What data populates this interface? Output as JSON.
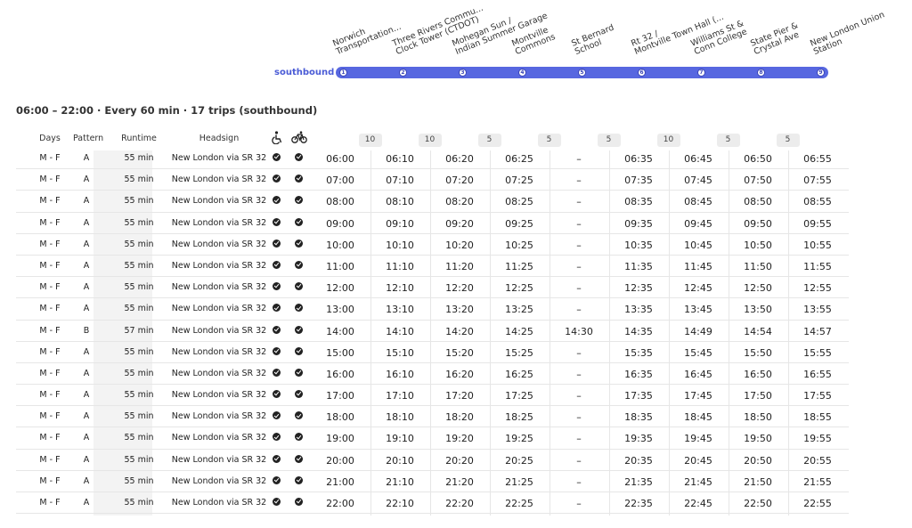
{
  "route": {
    "direction_label": "southbound",
    "stops": [
      {
        "num": "1",
        "name1": "Norwich",
        "name2": "Transportation..."
      },
      {
        "num": "2",
        "name1": "Three Rivers Commu...",
        "name2": "Clock Tower (CTDOT)"
      },
      {
        "num": "3",
        "name1": "Mohegan Sun /",
        "name2": "Indian Summer Garage"
      },
      {
        "num": "4",
        "name1": "Montville",
        "name2": "Commons"
      },
      {
        "num": "5",
        "name1": "St Bernard",
        "name2": "School"
      },
      {
        "num": "6",
        "name1": "Rt 32 /",
        "name2": "Montville Town Hall (..."
      },
      {
        "num": "7",
        "name1": "Williams St &",
        "name2": "Conn College"
      },
      {
        "num": "8",
        "name1": "State Pier &",
        "name2": "Crystal Ave"
      },
      {
        "num": "9",
        "name1": "New London Union",
        "name2": "Station"
      }
    ]
  },
  "summary": "06:00 – 22:00 · Every 60 min · 17 trips (southbound)",
  "table": {
    "headers": {
      "days": "Days",
      "pattern": "Pattern",
      "runtime": "Runtime",
      "headsign": "Headsign",
      "wheelchair_icon": "wheelchair-icon",
      "bike_icon": "bicycle-icon"
    },
    "segment_minutes": [
      "10",
      "10",
      "5",
      "5",
      "5",
      "10",
      "5",
      "5"
    ],
    "rows": [
      {
        "days": "M - F",
        "pattern": "A",
        "runtime": "55 min",
        "headsign": "New London via SR 32",
        "times": [
          "06:00",
          "06:10",
          "06:20",
          "06:25",
          "–",
          "06:35",
          "06:45",
          "06:50",
          "06:55"
        ]
      },
      {
        "days": "M - F",
        "pattern": "A",
        "runtime": "55 min",
        "headsign": "New London via SR 32",
        "times": [
          "07:00",
          "07:10",
          "07:20",
          "07:25",
          "–",
          "07:35",
          "07:45",
          "07:50",
          "07:55"
        ]
      },
      {
        "days": "M - F",
        "pattern": "A",
        "runtime": "55 min",
        "headsign": "New London via SR 32",
        "times": [
          "08:00",
          "08:10",
          "08:20",
          "08:25",
          "–",
          "08:35",
          "08:45",
          "08:50",
          "08:55"
        ]
      },
      {
        "days": "M - F",
        "pattern": "A",
        "runtime": "55 min",
        "headsign": "New London via SR 32",
        "times": [
          "09:00",
          "09:10",
          "09:20",
          "09:25",
          "–",
          "09:35",
          "09:45",
          "09:50",
          "09:55"
        ]
      },
      {
        "days": "M - F",
        "pattern": "A",
        "runtime": "55 min",
        "headsign": "New London via SR 32",
        "times": [
          "10:00",
          "10:10",
          "10:20",
          "10:25",
          "–",
          "10:35",
          "10:45",
          "10:50",
          "10:55"
        ]
      },
      {
        "days": "M - F",
        "pattern": "A",
        "runtime": "55 min",
        "headsign": "New London via SR 32",
        "times": [
          "11:00",
          "11:10",
          "11:20",
          "11:25",
          "–",
          "11:35",
          "11:45",
          "11:50",
          "11:55"
        ]
      },
      {
        "days": "M - F",
        "pattern": "A",
        "runtime": "55 min",
        "headsign": "New London via SR 32",
        "times": [
          "12:00",
          "12:10",
          "12:20",
          "12:25",
          "–",
          "12:35",
          "12:45",
          "12:50",
          "12:55"
        ]
      },
      {
        "days": "M - F",
        "pattern": "A",
        "runtime": "55 min",
        "headsign": "New London via SR 32",
        "times": [
          "13:00",
          "13:10",
          "13:20",
          "13:25",
          "–",
          "13:35",
          "13:45",
          "13:50",
          "13:55"
        ]
      },
      {
        "days": "M - F",
        "pattern": "B",
        "runtime": "57 min",
        "headsign": "New London via SR 32",
        "times": [
          "14:00",
          "14:10",
          "14:20",
          "14:25",
          "14:30",
          "14:35",
          "14:49",
          "14:54",
          "14:57"
        ]
      },
      {
        "days": "M - F",
        "pattern": "A",
        "runtime": "55 min",
        "headsign": "New London via SR 32",
        "times": [
          "15:00",
          "15:10",
          "15:20",
          "15:25",
          "–",
          "15:35",
          "15:45",
          "15:50",
          "15:55"
        ]
      },
      {
        "days": "M - F",
        "pattern": "A",
        "runtime": "55 min",
        "headsign": "New London via SR 32",
        "times": [
          "16:00",
          "16:10",
          "16:20",
          "16:25",
          "–",
          "16:35",
          "16:45",
          "16:50",
          "16:55"
        ]
      },
      {
        "days": "M - F",
        "pattern": "A",
        "runtime": "55 min",
        "headsign": "New London via SR 32",
        "times": [
          "17:00",
          "17:10",
          "17:20",
          "17:25",
          "–",
          "17:35",
          "17:45",
          "17:50",
          "17:55"
        ]
      },
      {
        "days": "M - F",
        "pattern": "A",
        "runtime": "55 min",
        "headsign": "New London via SR 32",
        "times": [
          "18:00",
          "18:10",
          "18:20",
          "18:25",
          "–",
          "18:35",
          "18:45",
          "18:50",
          "18:55"
        ]
      },
      {
        "days": "M - F",
        "pattern": "A",
        "runtime": "55 min",
        "headsign": "New London via SR 32",
        "times": [
          "19:00",
          "19:10",
          "19:20",
          "19:25",
          "–",
          "19:35",
          "19:45",
          "19:50",
          "19:55"
        ]
      },
      {
        "days": "M - F",
        "pattern": "A",
        "runtime": "55 min",
        "headsign": "New London via SR 32",
        "times": [
          "20:00",
          "20:10",
          "20:20",
          "20:25",
          "–",
          "20:35",
          "20:45",
          "20:50",
          "20:55"
        ]
      },
      {
        "days": "M - F",
        "pattern": "A",
        "runtime": "55 min",
        "headsign": "New London via SR 32",
        "times": [
          "21:00",
          "21:10",
          "21:20",
          "21:25",
          "–",
          "21:35",
          "21:45",
          "21:50",
          "21:55"
        ]
      },
      {
        "days": "M - F",
        "pattern": "A",
        "runtime": "55 min",
        "headsign": "New London via SR 32",
        "times": [
          "22:00",
          "22:10",
          "22:20",
          "22:25",
          "–",
          "22:35",
          "22:45",
          "22:50",
          "22:55"
        ]
      }
    ]
  },
  "colors": {
    "route_bar": "#5767e0",
    "direction_label": "#4a5bd6",
    "runtime_bg": "#f3f3f3"
  }
}
